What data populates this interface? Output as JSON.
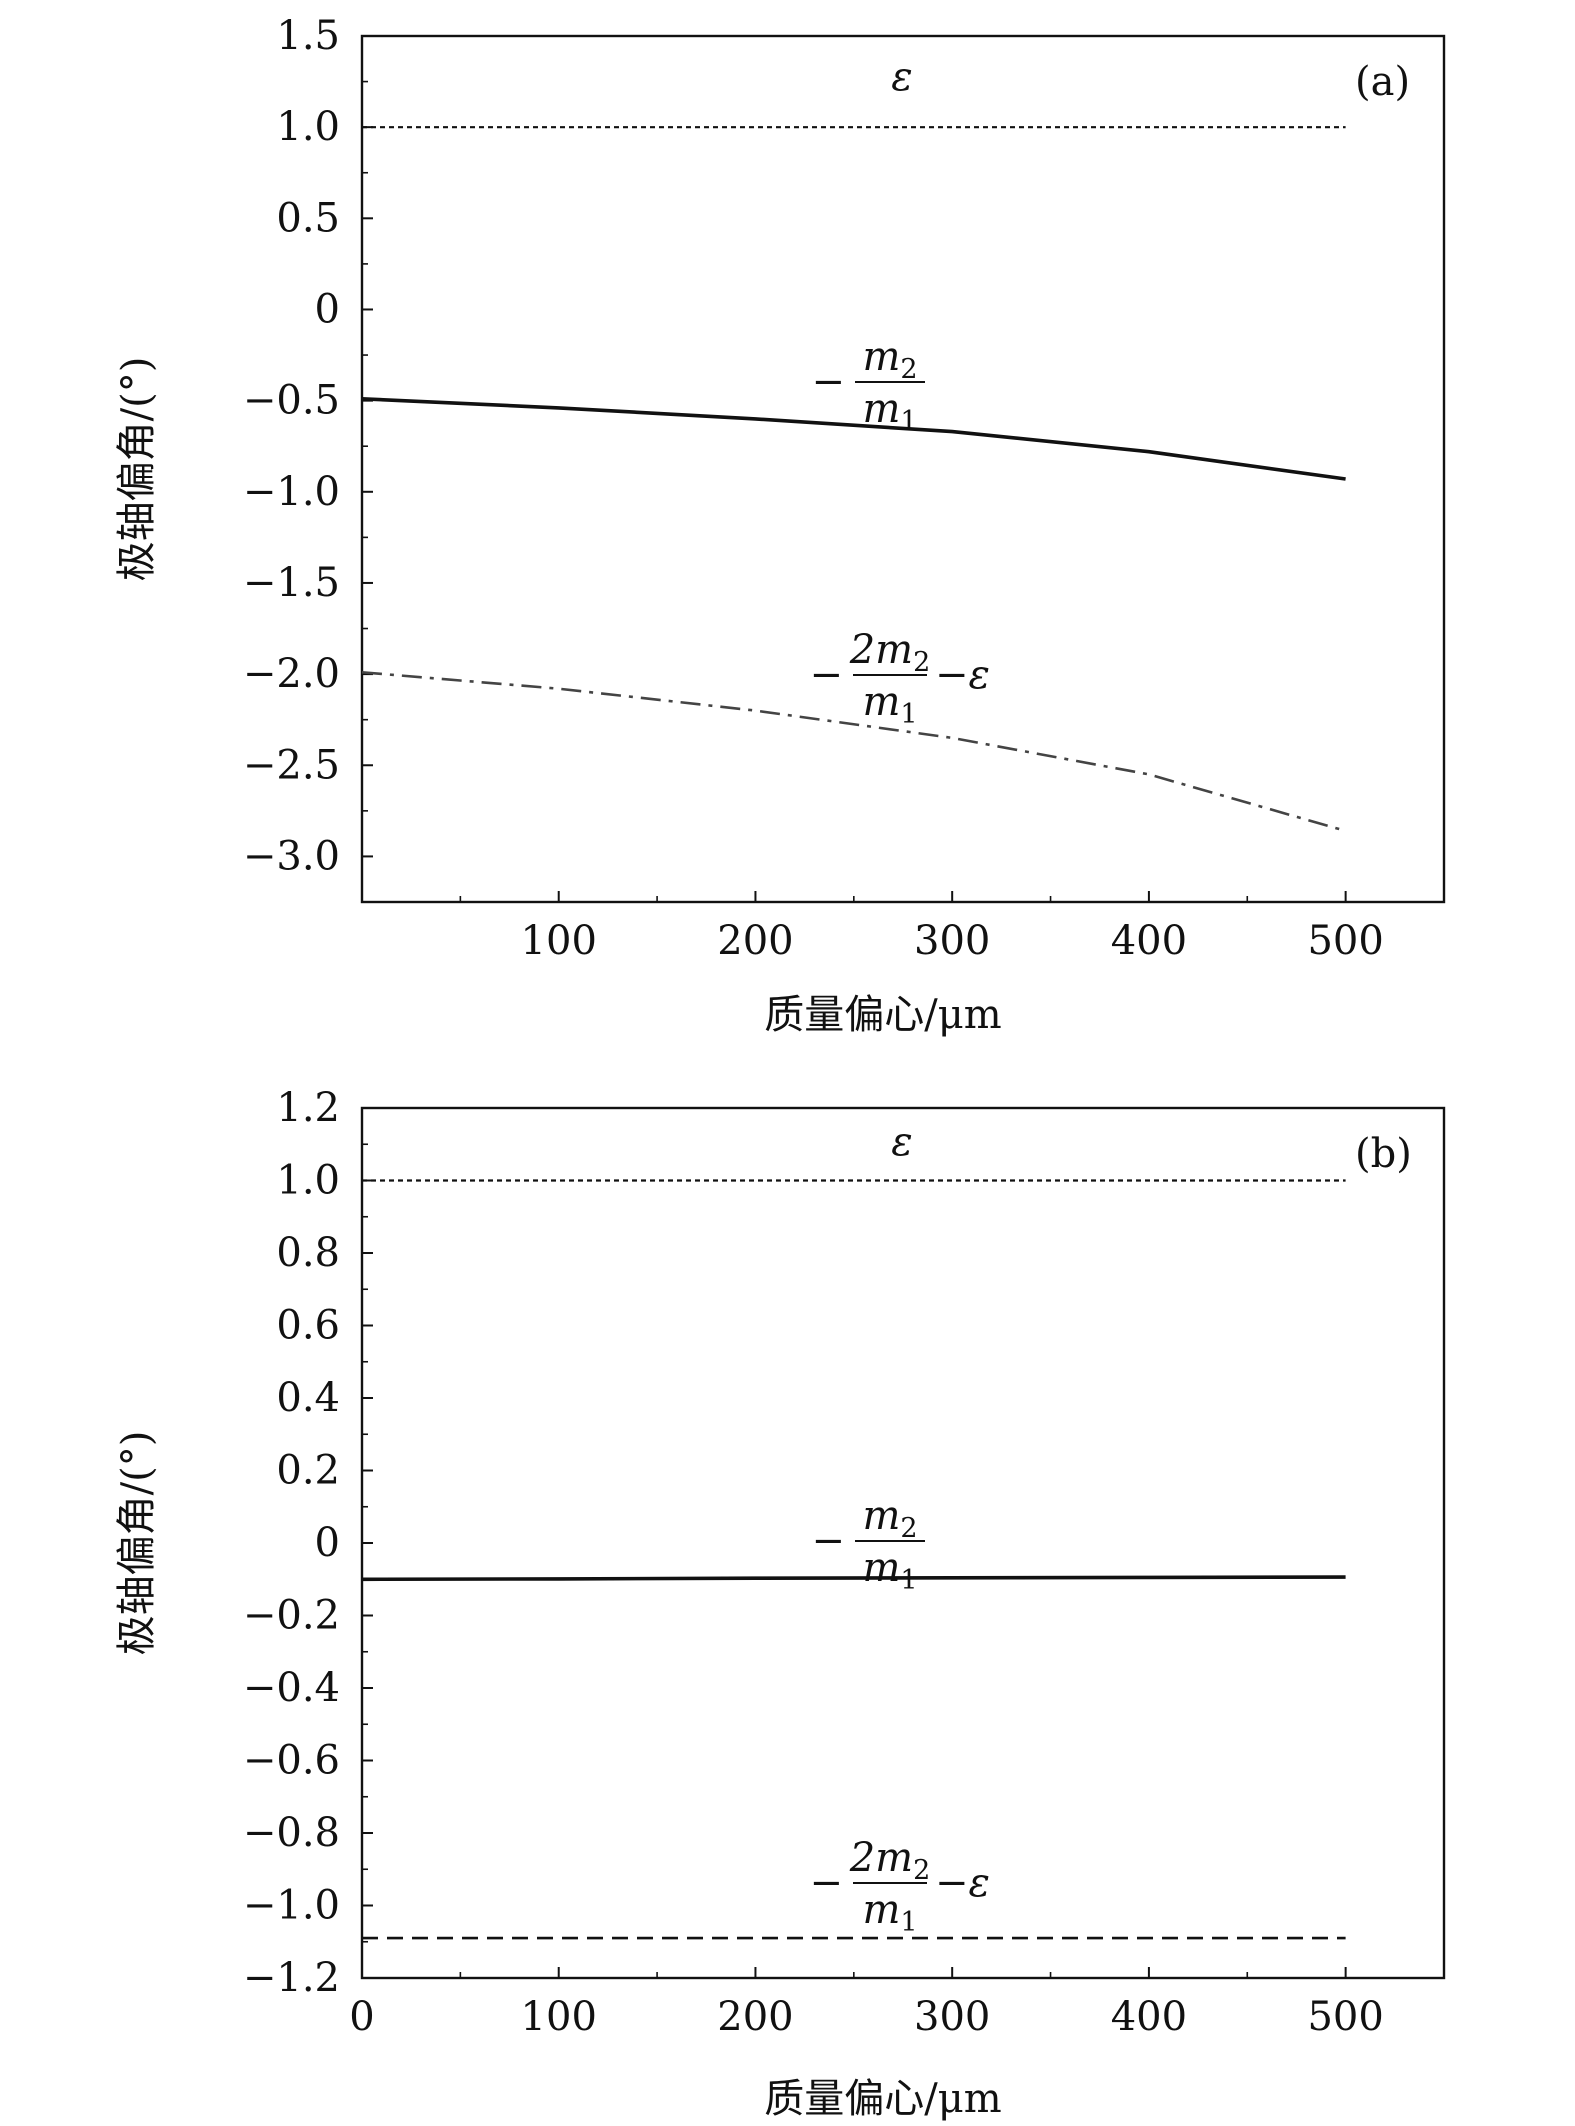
{
  "chart_data": [
    {
      "type": "line",
      "panel_label": "(a)",
      "xlabel": "质量偏心/μm",
      "ylabel": "极轴偏角/(°)",
      "xlim": [
        0,
        550
      ],
      "ylim": [
        -3.25,
        1.5
      ],
      "x_ticks": [
        100,
        200,
        300,
        400,
        500
      ],
      "x_tick_labels": [
        "100",
        "200",
        "300",
        "400",
        "500"
      ],
      "y_ticks": [
        1.5,
        1.0,
        0.5,
        0,
        -0.5,
        -1.0,
        -1.5,
        -2.0,
        -2.5,
        -3.0
      ],
      "y_tick_labels": [
        "1.5",
        "1.0",
        "0.5",
        "0",
        "−0.5",
        "−1.0",
        "−1.5",
        "−2.0",
        "−2.5",
        "−3.0"
      ],
      "grid": false,
      "series": [
        {
          "key": "epsilon",
          "label": {
            "pre": "",
            "num": "ε",
            "num_sub": "",
            "den": "",
            "den_sub": "",
            "post": ""
          },
          "style": "dotted",
          "x": [
            0,
            100,
            200,
            300,
            400,
            500
          ],
          "y": [
            1.0,
            1.0,
            1.0,
            1.0,
            1.0,
            1.0
          ]
        },
        {
          "key": "neg-m2-over-m1",
          "label": {
            "pre": "−",
            "num": "m",
            "num_sub": "2",
            "den": "m",
            "den_sub": "1",
            "post": ""
          },
          "style": "solid",
          "x": [
            0,
            100,
            200,
            300,
            400,
            500
          ],
          "y": [
            -0.49,
            -0.54,
            -0.6,
            -0.67,
            -0.78,
            -0.93
          ]
        },
        {
          "key": "neg-2m2-over-m1-minus-epsilon",
          "label": {
            "pre": "−",
            "num": "2m",
            "num_sub": "2",
            "den": "m",
            "den_sub": "1",
            "post": "−ε"
          },
          "style": "dashdot",
          "x": [
            0,
            100,
            200,
            300,
            400,
            500
          ],
          "y": [
            -1.99,
            -2.08,
            -2.2,
            -2.35,
            -2.55,
            -2.86
          ]
        }
      ]
    },
    {
      "type": "line",
      "panel_label": "(b)",
      "xlabel": "质量偏心/μm",
      "ylabel": "极轴偏角/(°)",
      "xlim": [
        0,
        550
      ],
      "ylim": [
        -1.2,
        1.2
      ],
      "x_ticks": [
        0,
        100,
        200,
        300,
        400,
        500
      ],
      "x_tick_labels": [
        "0",
        "100",
        "200",
        "300",
        "400",
        "500"
      ],
      "y_ticks": [
        1.2,
        1.0,
        0.8,
        0.6,
        0.4,
        0.2,
        0,
        -0.2,
        -0.4,
        -0.6,
        -0.8,
        -1.0,
        -1.2
      ],
      "y_tick_labels": [
        "1.2",
        "1.0",
        "0.8",
        "0.6",
        "0.4",
        "0.2",
        "0",
        "−0.2",
        "−0.4",
        "−0.6",
        "−0.8",
        "−1.0",
        "−1.2"
      ],
      "grid": false,
      "series": [
        {
          "key": "epsilon",
          "label": {
            "pre": "",
            "num": "ε",
            "num_sub": "",
            "den": "",
            "den_sub": "",
            "post": ""
          },
          "style": "dotted",
          "x": [
            0,
            100,
            200,
            300,
            400,
            500
          ],
          "y": [
            1.0,
            1.0,
            1.0,
            1.0,
            1.0,
            1.0
          ]
        },
        {
          "key": "neg-m2-over-m1",
          "label": {
            "pre": "−",
            "num": "m",
            "num_sub": "2",
            "den": "m",
            "den_sub": "1",
            "post": ""
          },
          "style": "solid",
          "x": [
            0,
            100,
            200,
            300,
            400,
            500
          ],
          "y": [
            -0.1,
            -0.099,
            -0.097,
            -0.096,
            -0.095,
            -0.094
          ]
        },
        {
          "key": "neg-2m2-over-m1-minus-epsilon",
          "label": {
            "pre": "−",
            "num": "2m",
            "num_sub": "2",
            "den": "m",
            "den_sub": "1",
            "post": "−ε"
          },
          "style": "dashed",
          "x": [
            0,
            100,
            200,
            300,
            400,
            500
          ],
          "y": [
            -1.09,
            -1.09,
            -1.09,
            -1.09,
            -1.09,
            -1.09
          ]
        }
      ]
    }
  ]
}
